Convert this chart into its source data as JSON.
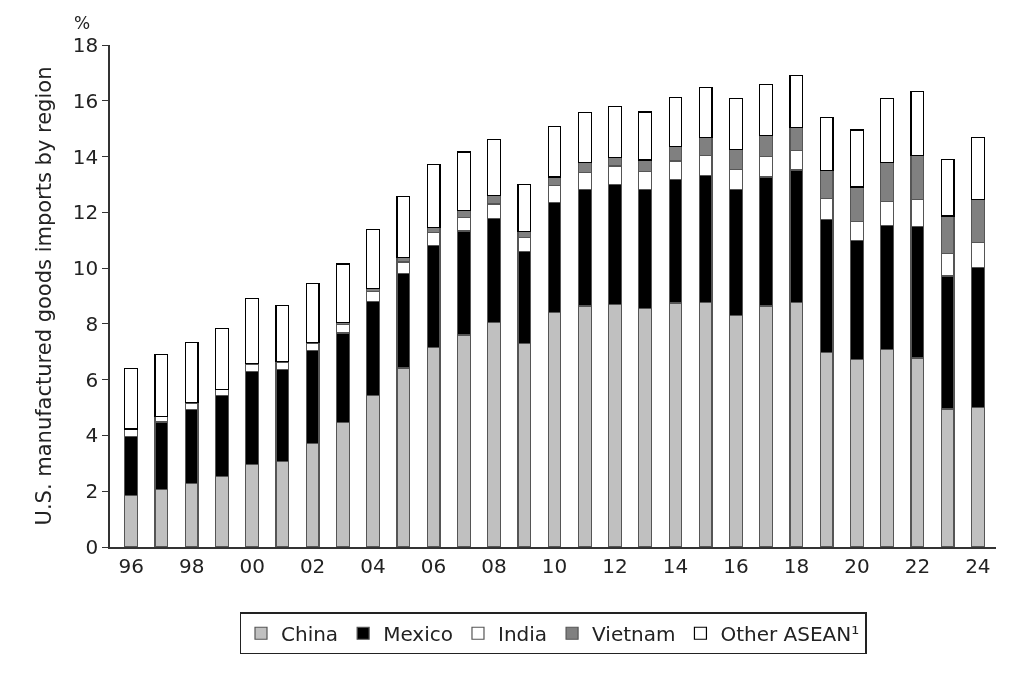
{
  "chart_data": {
    "type": "bar",
    "stacked": true,
    "ylabel": "U.S. manufactured goods imports by region",
    "annotations": [
      "%"
    ],
    "categories": [
      "96",
      null,
      "98",
      null,
      "00",
      null,
      "02",
      null,
      "04",
      null,
      "06",
      null,
      "08",
      null,
      "10",
      null,
      "12",
      null,
      "14",
      null,
      "16",
      null,
      "18",
      null,
      "20",
      null,
      "22",
      null,
      "24"
    ],
    "ylim": [
      0,
      18
    ],
    "yticks": [
      0,
      2,
      4,
      6,
      8,
      10,
      12,
      14,
      16,
      18
    ],
    "grid": false,
    "legend": "bottom",
    "series": [
      {
        "name": "China",
        "color": "#c0c0c0",
        "values": [
          1.84,
          2.07,
          2.28,
          2.52,
          2.97,
          3.07,
          3.71,
          4.45,
          5.43,
          6.42,
          7.15,
          7.6,
          8.06,
          7.31,
          8.4,
          8.64,
          8.69,
          8.55,
          8.75,
          8.76,
          8.3,
          8.64,
          8.76,
          6.97,
          6.73,
          7.07,
          6.78,
          4.95,
          4.99
        ]
      },
      {
        "name": "Mexico",
        "color": "#000000",
        "values": [
          2.13,
          2.41,
          2.65,
          2.91,
          3.33,
          3.29,
          3.34,
          3.22,
          3.38,
          3.4,
          3.66,
          3.73,
          3.73,
          3.3,
          3.96,
          4.17,
          4.32,
          4.28,
          4.43,
          4.56,
          4.52,
          4.63,
          4.76,
          4.76,
          4.26,
          4.47,
          4.71,
          4.77,
          5.02
        ]
      },
      {
        "name": "India",
        "color": "#ffffff",
        "values": [
          0.24,
          0.19,
          0.22,
          0.21,
          0.25,
          0.26,
          0.25,
          0.3,
          0.34,
          0.4,
          0.46,
          0.49,
          0.51,
          0.48,
          0.59,
          0.62,
          0.65,
          0.62,
          0.66,
          0.72,
          0.72,
          0.73,
          0.71,
          0.78,
          0.69,
          0.86,
          0.96,
          0.81,
          0.92
        ]
      },
      {
        "name": "Vietnam",
        "color": "#808080",
        "values": [
          0.02,
          0.02,
          0.02,
          0.02,
          0.02,
          0.02,
          0.03,
          0.09,
          0.12,
          0.17,
          0.18,
          0.24,
          0.29,
          0.21,
          0.32,
          0.36,
          0.32,
          0.43,
          0.52,
          0.65,
          0.7,
          0.75,
          0.8,
          0.99,
          1.23,
          1.39,
          1.59,
          1.34,
          1.53
        ]
      },
      {
        "name": "Other ASEAN¹",
        "color": "#ffffff",
        "values": [
          2.17,
          2.21,
          2.16,
          2.17,
          2.35,
          2.03,
          2.12,
          2.09,
          2.11,
          2.19,
          2.27,
          2.1,
          2.02,
          1.71,
          1.82,
          1.79,
          1.81,
          1.72,
          1.76,
          1.78,
          1.83,
          1.82,
          1.88,
          1.89,
          2.04,
          2.29,
          2.29,
          2.03,
          2.21
        ]
      }
    ]
  }
}
